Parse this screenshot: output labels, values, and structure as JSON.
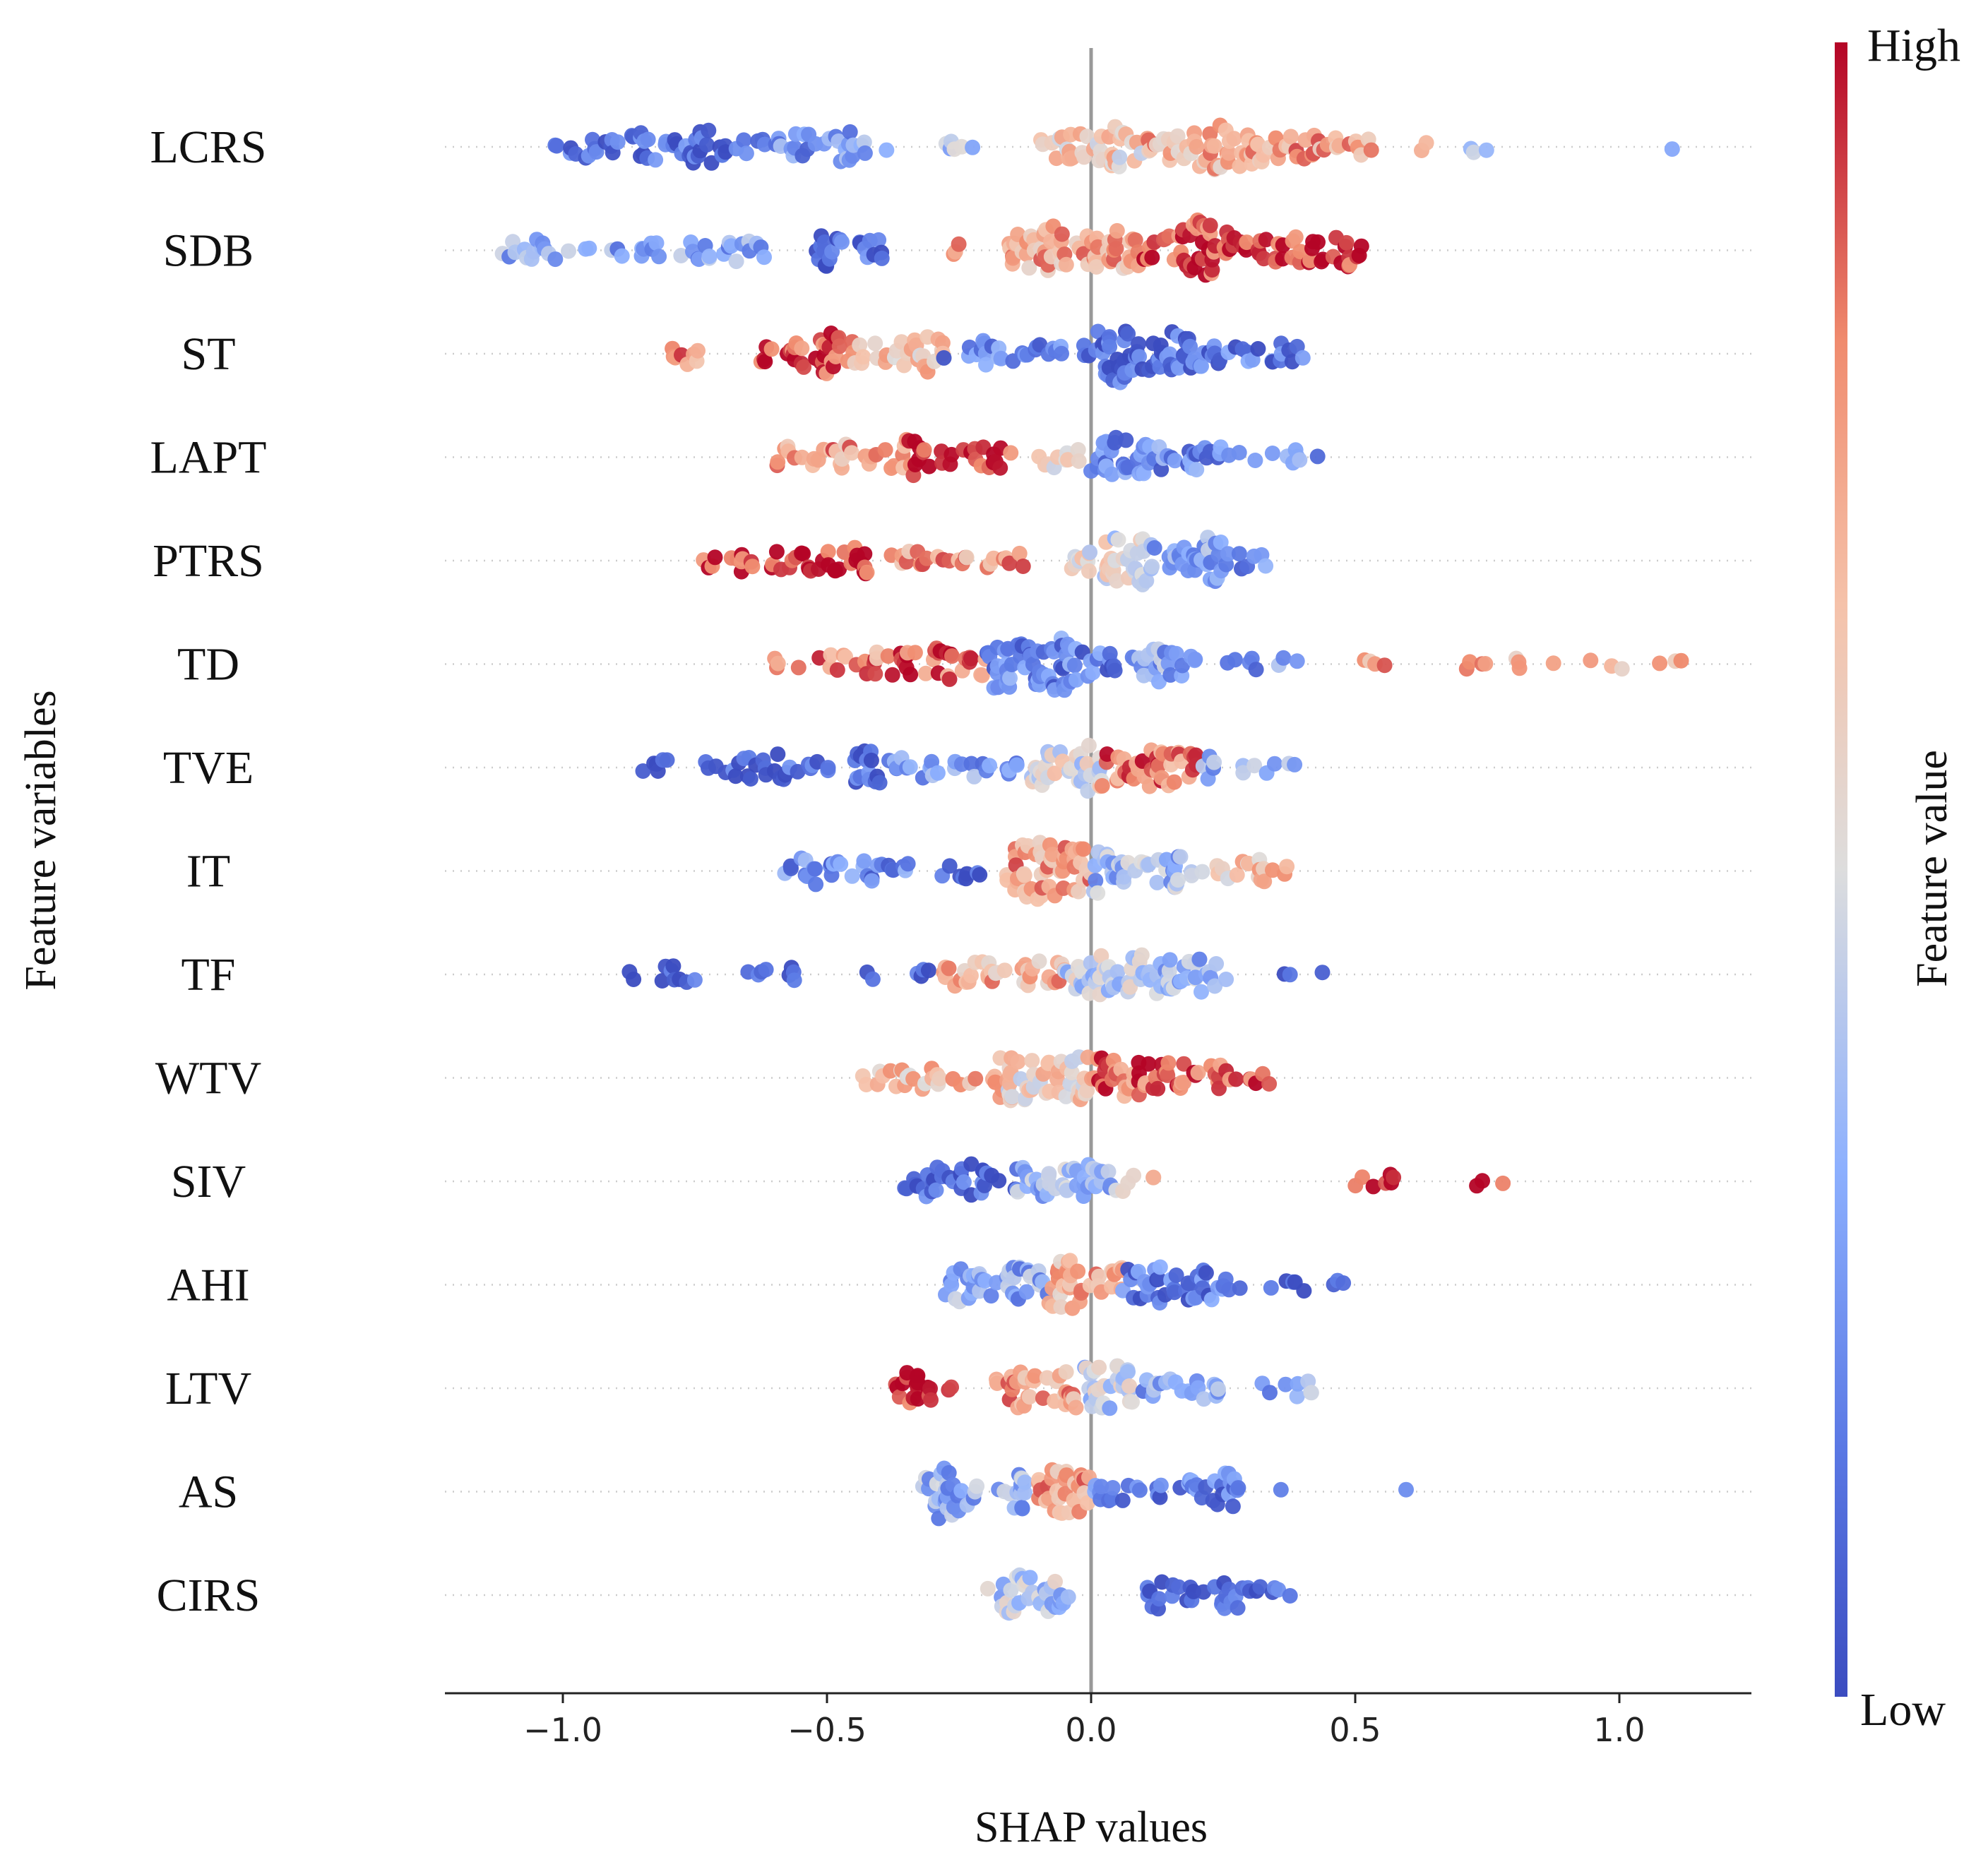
{
  "chart_data": {
    "type": "scatter",
    "subtype": "shap-beeswarm",
    "title": "",
    "xlabel": "SHAP values",
    "ylabel": "Feature variables",
    "xlim": [
      -1.22,
      1.26
    ],
    "xticks": [
      -1.0,
      -0.5,
      0.0,
      0.5,
      1.0
    ],
    "xtick_labels": [
      "−1.0",
      "−0.5",
      "0.0",
      "0.5",
      "1.0"
    ],
    "grid": "dotted horizontal guide per feature",
    "zero_line": 0.0,
    "colorbar": {
      "label": "Feature value",
      "high_label": "High",
      "low_label": "Low",
      "colormap": "coolwarm",
      "low_color": "#3b4cc0",
      "mid_color": "#dddddd",
      "high_color": "#b40426",
      "placement": "right"
    },
    "features": [
      {
        "name": "LCRS",
        "clusters": [
          [
            -1.02,
            -0.62,
            0.1,
            55
          ],
          [
            -0.62,
            -0.38,
            0.25,
            30
          ],
          [
            -0.28,
            -0.22,
            0.35,
            6
          ],
          [
            -0.1,
            0.1,
            0.6,
            40
          ],
          [
            0.1,
            0.3,
            0.7,
            45
          ],
          [
            0.3,
            0.55,
            0.75,
            35
          ],
          [
            0.62,
            0.66,
            0.7,
            2
          ],
          [
            0.7,
            0.76,
            0.35,
            3
          ],
          [
            1.1,
            1.1,
            0.3,
            1
          ]
        ]
      },
      {
        "name": "SDB",
        "clusters": [
          [
            -1.12,
            -0.9,
            0.3,
            18
          ],
          [
            -0.9,
            -0.6,
            0.3,
            28
          ],
          [
            -0.52,
            -0.38,
            0.12,
            22
          ],
          [
            -0.28,
            -0.24,
            0.75,
            3
          ],
          [
            -0.16,
            0.1,
            0.72,
            65
          ],
          [
            0.1,
            0.3,
            0.92,
            50
          ],
          [
            0.3,
            0.52,
            0.95,
            35
          ]
        ]
      },
      {
        "name": "ST",
        "clusters": [
          [
            -0.8,
            -0.72,
            0.78,
            8
          ],
          [
            -0.64,
            -0.45,
            0.92,
            35
          ],
          [
            -0.45,
            -0.28,
            0.65,
            28
          ],
          [
            -0.28,
            0.0,
            0.2,
            28
          ],
          [
            0.0,
            0.2,
            0.1,
            60
          ],
          [
            0.2,
            0.42,
            0.15,
            25
          ]
        ]
      },
      {
        "name": "LAPT",
        "clusters": [
          [
            -0.6,
            -0.35,
            0.75,
            30
          ],
          [
            -0.35,
            -0.15,
            0.92,
            28
          ],
          [
            -0.1,
            0.0,
            0.6,
            10
          ],
          [
            0.0,
            0.25,
            0.2,
            50
          ],
          [
            0.25,
            0.44,
            0.2,
            10
          ]
        ]
      },
      {
        "name": "PTRS",
        "clusters": [
          [
            -0.74,
            -0.64,
            0.95,
            12
          ],
          [
            -0.62,
            -0.42,
            0.98,
            30
          ],
          [
            -0.38,
            -0.12,
            0.75,
            25
          ],
          [
            -0.04,
            0.1,
            0.5,
            40
          ],
          [
            0.1,
            0.25,
            0.3,
            35
          ],
          [
            0.25,
            0.34,
            0.2,
            8
          ]
        ]
      },
      {
        "name": "TD",
        "clusters": [
          [
            -0.6,
            -0.4,
            0.8,
            18
          ],
          [
            -0.4,
            -0.2,
            0.85,
            30
          ],
          [
            -0.2,
            0.05,
            0.18,
            70
          ],
          [
            0.05,
            0.2,
            0.3,
            25
          ],
          [
            0.22,
            0.4,
            0.25,
            8
          ],
          [
            0.5,
            0.56,
            0.75,
            4
          ],
          [
            0.7,
            1.14,
            0.7,
            14
          ]
        ]
      },
      {
        "name": "TVE",
        "clusters": [
          [
            -0.88,
            -0.8,
            0.05,
            6
          ],
          [
            -0.74,
            -0.38,
            0.08,
            45
          ],
          [
            -0.38,
            -0.12,
            0.25,
            25
          ],
          [
            -0.12,
            0.02,
            0.5,
            40
          ],
          [
            0.02,
            0.2,
            0.82,
            40
          ],
          [
            0.2,
            0.4,
            0.3,
            12
          ]
        ]
      },
      {
        "name": "IT",
        "clusters": [
          [
            -0.58,
            -0.34,
            0.2,
            30
          ],
          [
            -0.3,
            -0.2,
            0.1,
            8
          ],
          [
            -0.16,
            0.0,
            0.75,
            55
          ],
          [
            0.0,
            0.2,
            0.35,
            40
          ],
          [
            0.2,
            0.38,
            0.65,
            18
          ]
        ]
      },
      {
        "name": "TF",
        "clusters": [
          [
            -0.9,
            -0.75,
            0.05,
            10
          ],
          [
            -0.65,
            -0.55,
            0.05,
            8
          ],
          [
            -0.45,
            -0.3,
            0.15,
            6
          ],
          [
            -0.28,
            -0.05,
            0.7,
            35
          ],
          [
            -0.05,
            0.12,
            0.45,
            40
          ],
          [
            0.12,
            0.26,
            0.35,
            30
          ],
          [
            0.36,
            0.52,
            0.05,
            3
          ]
        ]
      },
      {
        "name": "WTV",
        "clusters": [
          [
            -0.44,
            -0.28,
            0.65,
            20
          ],
          [
            -0.28,
            -0.14,
            0.75,
            12
          ],
          [
            -0.16,
            0.0,
            0.6,
            45
          ],
          [
            0.0,
            0.2,
            0.85,
            45
          ],
          [
            0.2,
            0.34,
            0.9,
            15
          ]
        ]
      },
      {
        "name": "SIV",
        "clusters": [
          [
            -0.36,
            -0.14,
            0.08,
            35
          ],
          [
            -0.14,
            0.05,
            0.35,
            40
          ],
          [
            0.05,
            0.12,
            0.72,
            5
          ],
          [
            0.47,
            0.6,
            1.0,
            7
          ],
          [
            0.72,
            0.78,
            1.0,
            3
          ]
        ]
      },
      {
        "name": "AHI",
        "clusters": [
          [
            -0.28,
            -0.08,
            0.3,
            40
          ],
          [
            -0.08,
            0.06,
            0.7,
            35
          ],
          [
            0.06,
            0.26,
            0.15,
            40
          ],
          [
            0.26,
            0.5,
            0.15,
            10
          ]
        ]
      },
      {
        "name": "LTV",
        "clusters": [
          [
            -0.37,
            -0.3,
            0.98,
            18
          ],
          [
            -0.28,
            -0.26,
            0.92,
            2
          ],
          [
            -0.18,
            -0.02,
            0.75,
            35
          ],
          [
            -0.02,
            0.08,
            0.42,
            30
          ],
          [
            0.08,
            0.25,
            0.3,
            20
          ],
          [
            0.3,
            0.42,
            0.3,
            8
          ]
        ]
      },
      {
        "name": "AS",
        "clusters": [
          [
            -0.32,
            -0.12,
            0.32,
            45
          ],
          [
            -0.1,
            0.0,
            0.75,
            30
          ],
          [
            0.0,
            0.28,
            0.18,
            40
          ],
          [
            0.34,
            0.36,
            0.05,
            1
          ],
          [
            0.59,
            0.6,
            0.12,
            1
          ]
        ]
      },
      {
        "name": "CIRS",
        "clusters": [
          [
            -0.2,
            -0.04,
            0.4,
            35
          ],
          [
            0.08,
            0.38,
            0.06,
            35
          ]
        ]
      }
    ]
  }
}
